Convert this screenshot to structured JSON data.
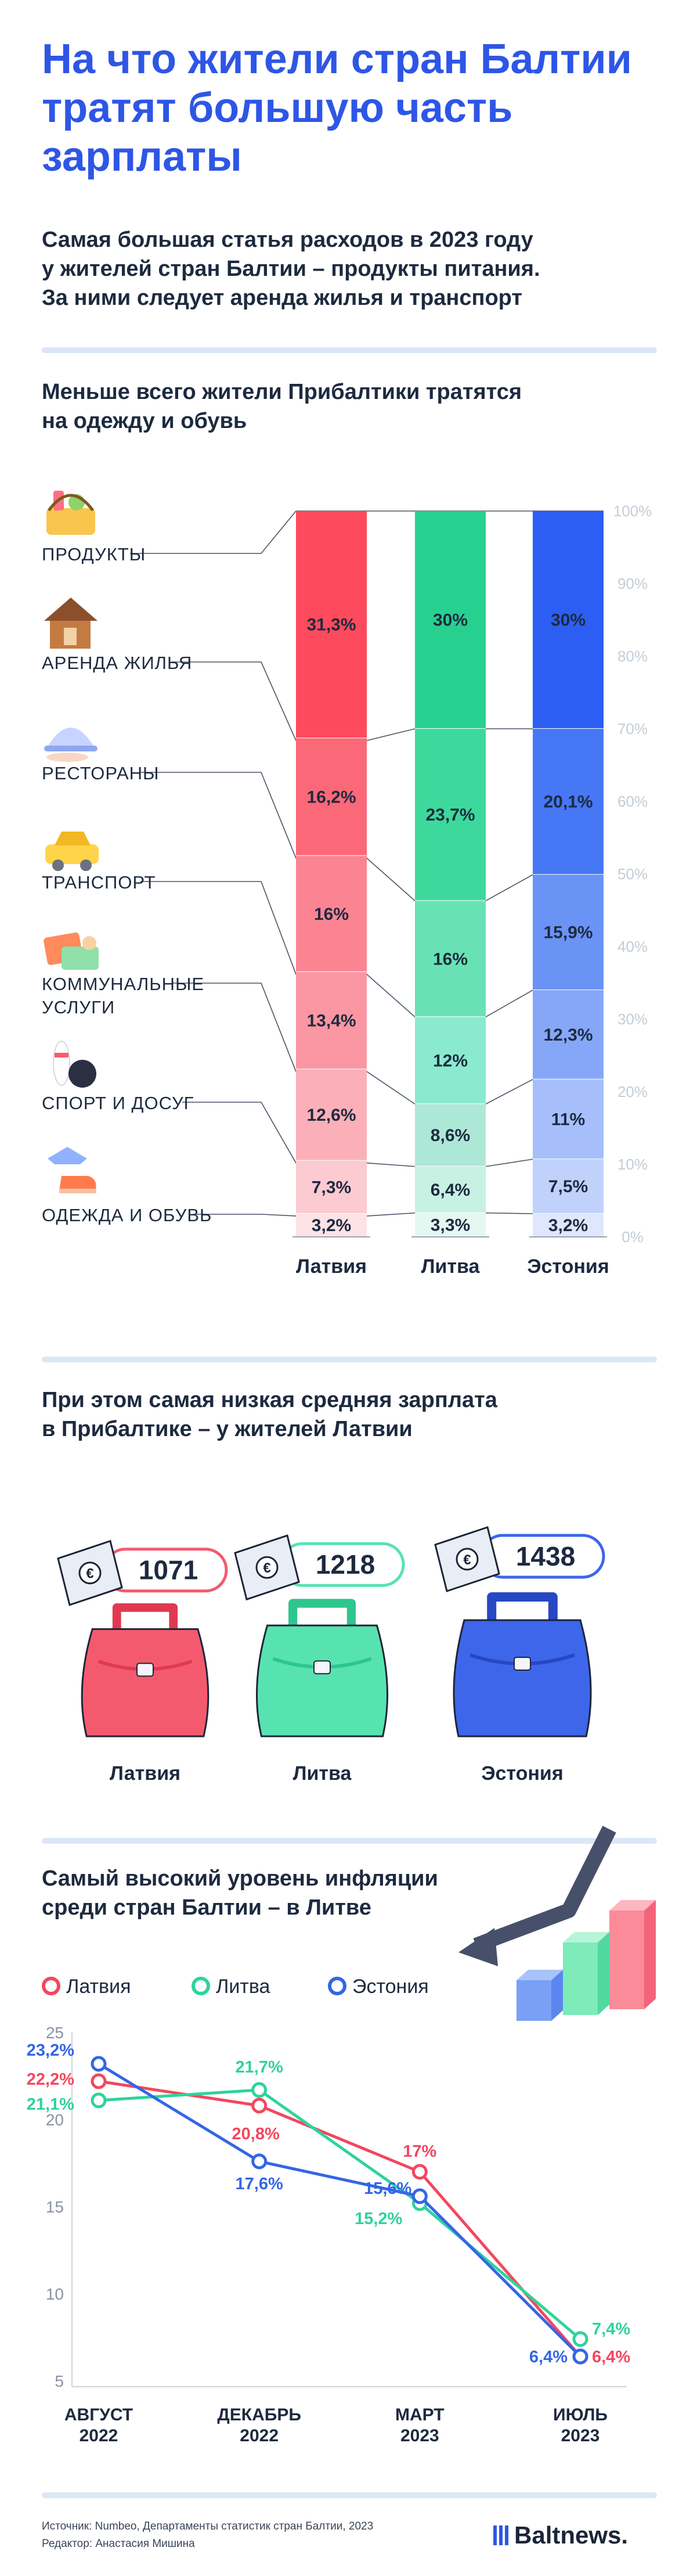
{
  "title": "На что жители стран Балтии тратят большую часть зарплаты",
  "intro": [
    "Самая большая статья расходов в 2023 году",
    "у жителей стран Балтии – продукты питания.",
    "За ними следует аренда жилья и транспорт"
  ],
  "section1": {
    "heading": [
      "Меньше всего жители Прибалтики тратятся",
      "на одежду и обувь"
    ]
  },
  "section2": {
    "heading": [
      "При этом самая низкая средняя зарплата",
      "в Прибалтике – у жителей Латвии"
    ]
  },
  "section3": {
    "heading": [
      "Самый высокий уровень инфляции",
      "среди стран Балтии – в Литве"
    ]
  },
  "categories": [
    {
      "label": [
        "ПРОДУКТЫ"
      ],
      "icon": "grocery-basket-icon"
    },
    {
      "label": [
        "АРЕНДА ЖИЛЬЯ"
      ],
      "icon": "house-icon"
    },
    {
      "label": [
        "РЕСТОРАНЫ"
      ],
      "icon": "serving-cloche-icon"
    },
    {
      "label": [
        "ТРАНСПОРТ"
      ],
      "icon": "taxi-car-icon"
    },
    {
      "label": [
        "КОММУНАЛЬНЫЕ",
        "УСЛУГИ"
      ],
      "icon": "utility-bills-icon"
    },
    {
      "label": [
        "СПОРТ И ДОСУГ"
      ],
      "icon": "bowling-icon"
    },
    {
      "label": [
        "ОДЕЖДА И ОБУВЬ"
      ],
      "icon": "clothes-shoes-icon"
    }
  ],
  "axis_percent_labels": [
    "100%",
    "90%",
    "80%",
    "70%",
    "60%",
    "50%",
    "40%",
    "30%",
    "20%",
    "10%",
    "0%"
  ],
  "colors": {
    "latvia": [
      "#fd4a5c",
      "#fb6878",
      "#fb8493",
      "#fb96a3",
      "#fbb0b9",
      "#fccad1",
      "#fde2e6"
    ],
    "lithuania": [
      "#27d08f",
      "#3dd99c",
      "#68e2b5",
      "#8aead0",
      "#ade8d6",
      "#c6f1e3",
      "#e4f8f1"
    ],
    "estonia": [
      "#2c5ef3",
      "#4677f5",
      "#6a93f6",
      "#86a7f8",
      "#a6bffa",
      "#c0d1fb",
      "#dee7fd"
    ],
    "latvia_line": "#f3475e",
    "lithuania_line": "#2fd39a",
    "estonia_line": "#3465e6",
    "title_blue": "#2e56e6"
  },
  "chart_data": [
    {
      "type": "bar",
      "stacked": true,
      "categories": [
        "Латвия",
        "Литва",
        "Эстония"
      ],
      "series": [
        {
          "name": "ПРОДУКТЫ",
          "values": [
            31.3,
            30,
            30
          ],
          "labels": [
            "31,3%",
            "30%",
            "30%"
          ]
        },
        {
          "name": "АРЕНДА ЖИЛЬЯ",
          "values": [
            16.2,
            23.7,
            20.1
          ],
          "labels": [
            "16,2%",
            "23,7%",
            "20,1%"
          ]
        },
        {
          "name": "РЕСТОРАНЫ",
          "values": [
            16,
            16,
            15.9
          ],
          "labels": [
            "16%",
            "16%",
            "15,9%"
          ]
        },
        {
          "name": "ТРАНСПОРТ",
          "values": [
            13.4,
            12,
            12.3
          ],
          "labels": [
            "13,4%",
            "12%",
            "12,3%"
          ]
        },
        {
          "name": "КОММУНАЛЬНЫЕ УСЛУГИ",
          "values": [
            12.6,
            8.6,
            11
          ],
          "labels": [
            "12,6%",
            "8,6%",
            "11%"
          ]
        },
        {
          "name": "СПОРТ И ДОСУГ",
          "values": [
            7.3,
            6.4,
            7.5
          ],
          "labels": [
            "7,3%",
            "6,4%",
            "7,5%"
          ]
        },
        {
          "name": "ОДЕЖДА И ОБУВЬ",
          "values": [
            3.2,
            3.3,
            3.2
          ],
          "labels": [
            "3,2%",
            "3,3%",
            "3,2%"
          ]
        }
      ],
      "ylim": [
        0,
        100
      ]
    },
    {
      "type": "bar",
      "categories": [
        "Латвия",
        "Литва",
        "Эстония"
      ],
      "values": [
        1071,
        1218,
        1438
      ]
    },
    {
      "type": "line",
      "x": [
        "АВГУСТ 2022",
        "ДЕКАБРЬ 2022",
        "МАРТ 2023",
        "ИЮЛЬ 2023"
      ],
      "x_lines": [
        [
          "АВГУСТ",
          "2022"
        ],
        [
          "ДЕКАБРЬ",
          "2022"
        ],
        [
          "МАРТ",
          "2023"
        ],
        [
          "ИЮЛЬ",
          "2023"
        ]
      ],
      "yticks": [
        25,
        20,
        15,
        10,
        5
      ],
      "ylim": [
        5,
        25
      ],
      "grid": false,
      "legend": "top-left",
      "series": [
        {
          "name": "Латвия",
          "values": [
            22.2,
            20.8,
            17,
            6.4
          ],
          "labels": [
            "22,2%",
            "20,8%",
            "17%",
            "6,4%"
          ]
        },
        {
          "name": "Литва",
          "values": [
            21.1,
            21.7,
            15.2,
            7.4
          ],
          "labels": [
            "21,1%",
            "21,7%",
            "15,2%",
            "7,4%"
          ]
        },
        {
          "name": "Эстония",
          "values": [
            23.2,
            17.6,
            15.6,
            6.4
          ],
          "labels": [
            "23,2%",
            "17,6%",
            "15,6%",
            "6,4%"
          ]
        }
      ]
    }
  ],
  "footer": {
    "source": "Источник: Numbeo, Департаменты статистик стран Балтии, 2023",
    "editor": "Редактор: Анастасия Мишина",
    "brand": "Baltnews."
  }
}
